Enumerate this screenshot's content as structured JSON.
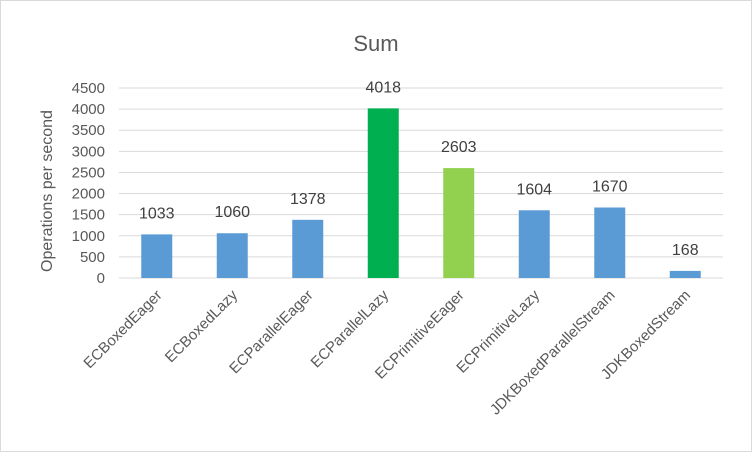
{
  "chart_data": {
    "type": "bar",
    "title": "Sum",
    "xlabel": "",
    "ylabel": "Operations per second",
    "ylim": [
      0,
      4500
    ],
    "yticks": [
      0,
      500,
      1000,
      1500,
      2000,
      2500,
      3000,
      3500,
      4000,
      4500
    ],
    "grid": true,
    "legend": "none",
    "categories": [
      "ECBoxedEager",
      "ECBoxedLazy",
      "ECParallelEager",
      "ECParallelLazy",
      "ECPrimitiveEager",
      "ECPrimitiveLazy",
      "JDKBoxedParallelStream",
      "JDKBoxedStream"
    ],
    "values": [
      1033,
      1060,
      1378,
      4018,
      2603,
      1604,
      1670,
      168
    ],
    "colors": [
      "#5b9bd5",
      "#5b9bd5",
      "#5b9bd5",
      "#00b050",
      "#92d050",
      "#5b9bd5",
      "#5b9bd5",
      "#5b9bd5"
    ]
  }
}
